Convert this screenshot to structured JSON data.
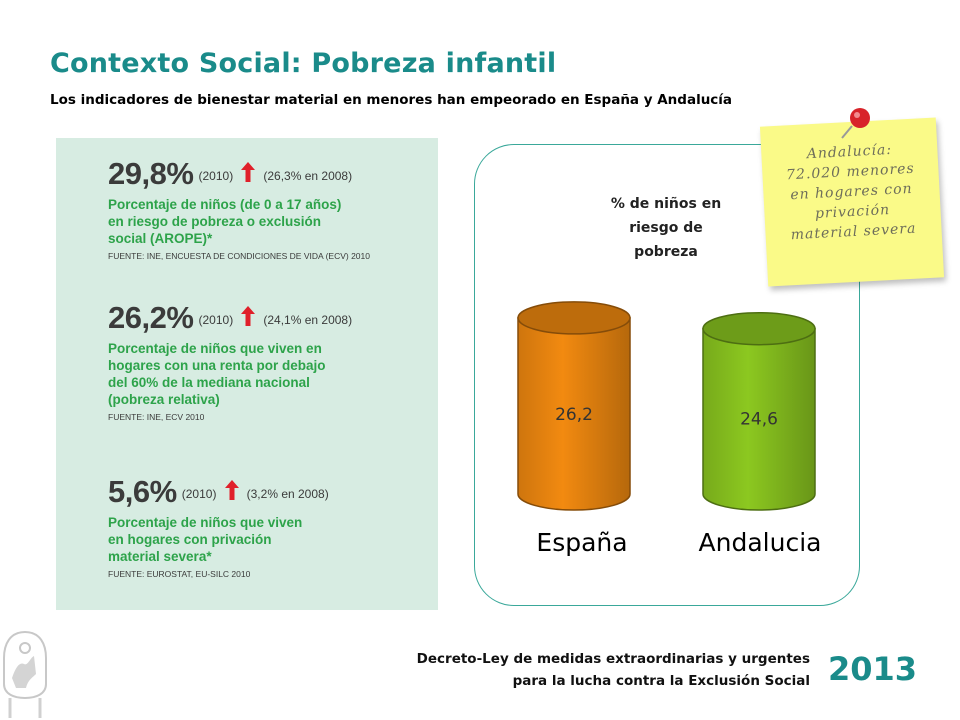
{
  "header": {
    "title": "Contexto Social: Pobreza infantil",
    "subtitle": "Los indicadores de bienestar material en menores han empeorado en España y Andalucía"
  },
  "stats": [
    {
      "value": "29,8%",
      "year": "(2010)",
      "previous": "(26,3% en 2008)",
      "description": [
        "Porcentaje de niños (de 0 a 17 años)",
        "en riesgo de pobreza o exclusión",
        "social (AROPE)*"
      ],
      "source": "FUENTE: INE, ENCUESTA DE CONDICIONES DE VIDA (ECV) 2010"
    },
    {
      "value": "26,2%",
      "year": "(2010)",
      "previous": "(24,1% en 2008)",
      "description": [
        "Porcentaje de niños que viven en",
        "hogares con una renta por debajo",
        "del 60% de la mediana nacional",
        "(pobreza relativa)"
      ],
      "source": "FUENTE: INE, ECV 2010"
    },
    {
      "value": "5,6%",
      "year": "(2010)",
      "previous": "(3,2% en 2008)",
      "description": [
        "Porcentaje de niños que viven",
        "en hogares con privación",
        "material severa*"
      ],
      "source": "FUENTE: EUROSTAT, EU-SILC 2010"
    }
  ],
  "chart_data": {
    "type": "bar",
    "title": "% de niños en riesgo de pobreza",
    "categories": [
      "España",
      "Andalucia"
    ],
    "values": [
      26.2,
      24.6
    ],
    "value_labels": [
      "26,2",
      "24,6"
    ],
    "colors": [
      "#f28a10",
      "#8cc820"
    ],
    "grid": false,
    "legend": "none"
  },
  "chart": {
    "title_lines": [
      "% de niños en",
      "riesgo de",
      "pobreza"
    ]
  },
  "note": {
    "lines": [
      "Andalucía:",
      "72.020 menores",
      "en hogares con",
      "privación",
      "material severa"
    ]
  },
  "footer": {
    "lines": [
      "Decreto-Ley de medidas extraordinarias y urgentes",
      "para la lucha contra la Exclusión Social"
    ],
    "year": "2013"
  },
  "colors": {
    "accent": "#1a8b8a",
    "panel": "#d7ece2",
    "stat_text": "#2da34a",
    "arrow": "#e0202a",
    "note": "#fafa88"
  },
  "icons": {
    "stat_arrow": "up-arrow-icon",
    "pin": "push-pin-icon",
    "logo": "junta-andalucia-logo"
  }
}
